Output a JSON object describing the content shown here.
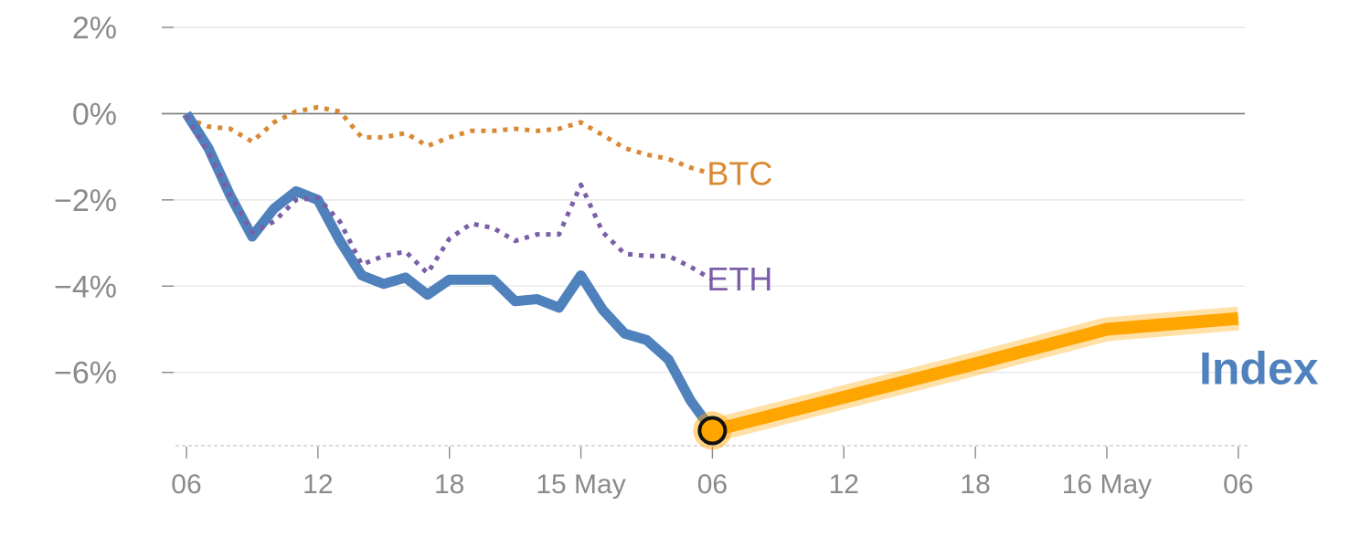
{
  "chart_data": {
    "type": "line",
    "title": "",
    "xlabel": "",
    "ylabel": "",
    "x_unit": "hours",
    "xlim": [
      -0.5,
      48.3
    ],
    "ylim": [
      -7.7,
      2.0
    ],
    "grid": true,
    "ytick_values": [
      2,
      0,
      -2,
      -4,
      -6
    ],
    "ytick_labels": [
      "2%",
      "0%",
      "−2%",
      "−4%",
      "−6%"
    ],
    "xtick_values": [
      0,
      6,
      12,
      18,
      24,
      30,
      36,
      42,
      48
    ],
    "xtick_labels": [
      "06",
      "12",
      "18",
      "15 May",
      "06",
      "12",
      "18",
      "16 May",
      "06"
    ],
    "series": [
      {
        "name": "Index",
        "color": "#4f81bd",
        "style": "solid",
        "x": [
          0,
          1,
          2,
          3,
          4,
          5,
          6,
          7,
          8,
          9,
          10,
          11,
          12,
          13,
          14,
          15,
          16,
          17,
          18,
          19,
          20,
          21,
          22,
          23,
          24
        ],
        "values": [
          0,
          -0.8,
          -1.9,
          -2.85,
          -2.2,
          -1.8,
          -2.0,
          -2.95,
          -3.75,
          -3.95,
          -3.8,
          -4.2,
          -3.85,
          -3.85,
          -3.85,
          -4.35,
          -4.3,
          -4.5,
          -3.75,
          -4.55,
          -5.1,
          -5.25,
          -5.7,
          -6.65,
          -7.35
        ]
      },
      {
        "name": "BTC",
        "color": "#d98933",
        "style": "dotted",
        "x": [
          0,
          1,
          2,
          3,
          4,
          5,
          6,
          7,
          8,
          9,
          10,
          11,
          12,
          13,
          14,
          15,
          16,
          17,
          18,
          19,
          20,
          21,
          22,
          23,
          24
        ],
        "values": [
          -0.1,
          -0.3,
          -0.35,
          -0.65,
          -0.2,
          0.05,
          0.15,
          0.05,
          -0.55,
          -0.55,
          -0.45,
          -0.75,
          -0.55,
          -0.4,
          -0.4,
          -0.35,
          -0.4,
          -0.35,
          -0.2,
          -0.5,
          -0.8,
          -0.95,
          -1.05,
          -1.25,
          -1.4
        ]
      },
      {
        "name": "ETH",
        "color": "#7b5ea8",
        "style": "dotted",
        "x": [
          0,
          1,
          2,
          3,
          4,
          5,
          6,
          7,
          8,
          9,
          10,
          11,
          12,
          13,
          14,
          15,
          16,
          17,
          18,
          19,
          20,
          21,
          22,
          23,
          24
        ],
        "values": [
          -0.05,
          -0.9,
          -1.9,
          -2.75,
          -2.5,
          -2.0,
          -1.95,
          -2.5,
          -3.5,
          -3.3,
          -3.2,
          -3.7,
          -2.9,
          -2.55,
          -2.65,
          -2.95,
          -2.8,
          -2.8,
          -1.65,
          -2.75,
          -3.25,
          -3.3,
          -3.3,
          -3.55,
          -3.85
        ]
      },
      {
        "name": "Index",
        "color": "#ffa500",
        "style": "highlight",
        "x": [
          24,
          36,
          42,
          48
        ],
        "values": [
          -7.35,
          -5.8,
          -5.0,
          -4.75
        ]
      }
    ],
    "marker": {
      "x": 24,
      "value": -7.35
    },
    "labels": [
      {
        "text": "BTC",
        "color": "#d98933"
      },
      {
        "text": "ETH",
        "color": "#7b5ea8"
      },
      {
        "text": "Index",
        "color": "#4f81bd"
      }
    ]
  }
}
